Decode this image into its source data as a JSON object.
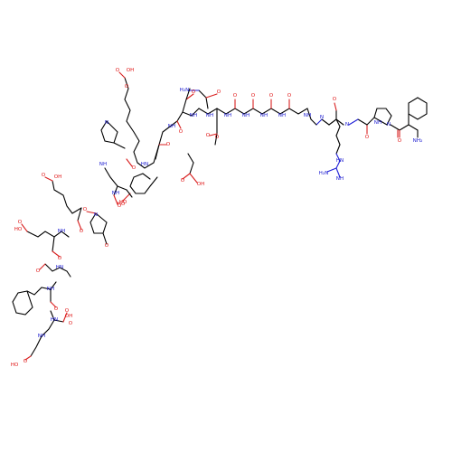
{
  "image": {
    "background": "#ffffff",
    "colors": {
      "carbon": "#000000",
      "oxygen": "#e01515",
      "nitrogen": "#1a1ad0"
    }
  },
  "atom_labels": [
    {
      "id": "a01",
      "text": "O",
      "el": "o"
    },
    {
      "id": "a02",
      "text": "O",
      "el": "o"
    },
    {
      "id": "a03",
      "text": "NH",
      "el": "n"
    },
    {
      "id": "a04",
      "text": "NH₂",
      "el": "n"
    },
    {
      "id": "a05",
      "text": "O",
      "el": "o"
    },
    {
      "id": "a06",
      "text": "N",
      "el": "n"
    },
    {
      "id": "a07",
      "text": "O",
      "el": "o"
    },
    {
      "id": "a08",
      "text": "N",
      "el": "n"
    },
    {
      "id": "a09",
      "text": "O",
      "el": "o"
    },
    {
      "id": "a10",
      "text": "NH",
      "el": "n"
    },
    {
      "id": "a11",
      "text": "O",
      "el": "o"
    },
    {
      "id": "a12",
      "text": "N",
      "el": "n"
    },
    {
      "id": "a13",
      "text": "O",
      "el": "o"
    },
    {
      "id": "a14",
      "text": "NH",
      "el": "n"
    },
    {
      "id": "a15",
      "text": "O",
      "el": "o"
    },
    {
      "id": "a16",
      "text": "NH",
      "el": "n"
    },
    {
      "id": "a17",
      "text": "O",
      "el": "o"
    },
    {
      "id": "a18",
      "text": "NH",
      "el": "n"
    },
    {
      "id": "a19",
      "text": "O",
      "el": "o"
    },
    {
      "id": "a20",
      "text": "NH",
      "el": "n"
    },
    {
      "id": "a21",
      "text": "O",
      "el": "o"
    },
    {
      "id": "a22",
      "text": "NH",
      "el": "n"
    },
    {
      "id": "a23",
      "text": "H₂N",
      "el": "n"
    },
    {
      "id": "a24",
      "text": "NH",
      "el": "n"
    },
    {
      "id": "a25",
      "text": "HN",
      "el": "n"
    },
    {
      "id": "a26",
      "text": "H₂N",
      "el": "n"
    },
    {
      "id": "a27",
      "text": "O",
      "el": "o"
    },
    {
      "id": "a28",
      "text": "NH",
      "el": "n"
    },
    {
      "id": "a29",
      "text": "O",
      "el": "o"
    },
    {
      "id": "a30",
      "text": "OH",
      "el": "o"
    },
    {
      "id": "a31",
      "text": "O",
      "el": "o"
    },
    {
      "id": "a32",
      "text": "NH",
      "el": "n"
    },
    {
      "id": "a33",
      "text": "O",
      "el": "o"
    },
    {
      "id": "a34",
      "text": "OH",
      "el": "o"
    },
    {
      "id": "a35",
      "text": "O",
      "el": "o"
    },
    {
      "id": "a36",
      "text": "HN",
      "el": "n"
    },
    {
      "id": "a37",
      "text": "O",
      "el": "o"
    },
    {
      "id": "a38",
      "text": "NH",
      "el": "n"
    },
    {
      "id": "a39",
      "text": "O",
      "el": "o"
    },
    {
      "id": "a40",
      "text": "N",
      "el": "n"
    },
    {
      "id": "a41",
      "text": "O",
      "el": "o"
    },
    {
      "id": "a42",
      "text": "OH",
      "el": "o"
    },
    {
      "id": "a43",
      "text": "HO",
      "el": "o"
    },
    {
      "id": "a44",
      "text": "O",
      "el": "o"
    },
    {
      "id": "a45",
      "text": "NH",
      "el": "n"
    },
    {
      "id": "a46",
      "text": "O",
      "el": "o"
    },
    {
      "id": "a47",
      "text": "O",
      "el": "o"
    },
    {
      "id": "a48",
      "text": "N",
      "el": "n"
    },
    {
      "id": "a49",
      "text": "O",
      "el": "o"
    },
    {
      "id": "a50",
      "text": "HN",
      "el": "n"
    },
    {
      "id": "a51",
      "text": "NH",
      "el": "n"
    },
    {
      "id": "a52",
      "text": "O",
      "el": "o"
    },
    {
      "id": "a53",
      "text": "HO",
      "el": "o"
    },
    {
      "id": "a54",
      "text": "O",
      "el": "o"
    },
    {
      "id": "a55",
      "text": "HN",
      "el": "n"
    },
    {
      "id": "a56",
      "text": "O",
      "el": "o"
    },
    {
      "id": "a57",
      "text": "NH",
      "el": "n"
    },
    {
      "id": "a58",
      "text": "O",
      "el": "o"
    },
    {
      "id": "a59",
      "text": "HO",
      "el": "o"
    },
    {
      "id": "a60",
      "text": "NH",
      "el": "n"
    },
    {
      "id": "a61",
      "text": "O",
      "el": "o"
    },
    {
      "id": "a62",
      "text": "OH",
      "el": "o"
    },
    {
      "id": "a63",
      "text": "O",
      "el": "o"
    },
    {
      "id": "a64",
      "text": "HO",
      "el": "o"
    }
  ]
}
